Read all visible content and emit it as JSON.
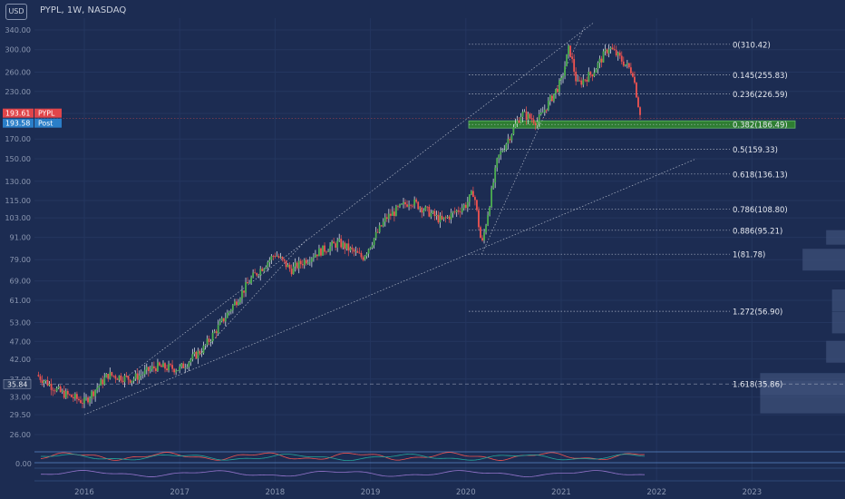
{
  "header": {
    "currency": "USD",
    "symbol": "PYPL",
    "interval": "1W",
    "exchange": "NASDAQ",
    "separator": ", "
  },
  "colors": {
    "background": "#1c2c52",
    "up": "#26a69a",
    "up_fill": "#4caf50",
    "down": "#ef5350",
    "grid": "#24365f",
    "axis_text": "#8a96b0",
    "fib_line": "#c9cfdc",
    "fib_zone": "#2e7d32",
    "price_badge": "#e0454a",
    "post_badge": "#2a7ec8",
    "volume_profile": "#3c4f78",
    "rsi": "#ef5350",
    "rsi_signal": "#26a69a",
    "stoch": "#9575cd"
  },
  "price_badges": [
    {
      "value": "193.61",
      "label": "PYPL",
      "color": "#e0454a"
    },
    {
      "value": "193.58",
      "label": "Post",
      "color": "#2a7ec8"
    }
  ],
  "crosshair_label": "35.84",
  "chart_data": {
    "type": "candlestick",
    "title": "PYPL, 1W, NASDAQ",
    "y_scale": "log",
    "y_ticks": [
      "340.00",
      "300.00",
      "260.00",
      "230.00",
      "200.00",
      "170.00",
      "150.00",
      "130.00",
      "115.00",
      "103.00",
      "91.00",
      "79.00",
      "69.00",
      "61.00",
      "53.00",
      "47.00",
      "42.00",
      "37.00",
      "33.00",
      "29.50",
      "26.00"
    ],
    "x_ticks": [
      "2016",
      "2017",
      "2018",
      "2019",
      "2020",
      "2021",
      "2022",
      "2023"
    ],
    "indicator_tick": "0.00",
    "last_price": 193.61,
    "post_price": 193.58,
    "anchor_points": [
      [
        "2015-07",
        38
      ],
      [
        "2015-10",
        34
      ],
      [
        "2016-01",
        32
      ],
      [
        "2016-04",
        38
      ],
      [
        "2016-07",
        37
      ],
      [
        "2016-10",
        40
      ],
      [
        "2017-01",
        39.5
      ],
      [
        "2017-04",
        45
      ],
      [
        "2017-07",
        56
      ],
      [
        "2017-10",
        70
      ],
      [
        "2018-01",
        82
      ],
      [
        "2018-03",
        74
      ],
      [
        "2018-06",
        82
      ],
      [
        "2018-09",
        88
      ],
      [
        "2018-12",
        80
      ],
      [
        "2019-03",
        103
      ],
      [
        "2019-06",
        115
      ],
      [
        "2019-08",
        108
      ],
      [
        "2019-10",
        101
      ],
      [
        "2020-01",
        112
      ],
      [
        "2020-02",
        122
      ],
      [
        "2020-03",
        86
      ],
      [
        "2020-05",
        150
      ],
      [
        "2020-08",
        200
      ],
      [
        "2020-10",
        190
      ],
      [
        "2021-01",
        245
      ],
      [
        "2021-02",
        305
      ],
      [
        "2021-03",
        240
      ],
      [
        "2021-05",
        260
      ],
      [
        "2021-07",
        305
      ],
      [
        "2021-08",
        290
      ],
      [
        "2021-10",
        260
      ],
      [
        "2021-11",
        193.61
      ]
    ],
    "fibonacci": {
      "levels": [
        {
          "ratio": "0",
          "value": 310.42,
          "label": "0(310.42)"
        },
        {
          "ratio": "0.145",
          "value": 255.83,
          "label": "0.145(255.83)"
        },
        {
          "ratio": "0.236",
          "value": 226.59,
          "label": "0.236(226.59)"
        },
        {
          "ratio": "0.382",
          "value": 186.49,
          "label": "0.382(186.49)"
        },
        {
          "ratio": "0.5",
          "value": 159.33,
          "label": "0.5(159.33)"
        },
        {
          "ratio": "0.618",
          "value": 136.13,
          "label": "0.618(136.13)"
        },
        {
          "ratio": "0.786",
          "value": 108.8,
          "label": "0.786(108.80)"
        },
        {
          "ratio": "0.886",
          "value": 95.21,
          "label": "0.886(95.21)"
        },
        {
          "ratio": "1",
          "value": 81.78,
          "label": "1(81.78)"
        },
        {
          "ratio": "1.272",
          "value": 56.9,
          "label": "1.272(56.90)"
        },
        {
          "ratio": "1.618",
          "value": 35.86,
          "label": "1.618(35.86)"
        }
      ],
      "highlighted_zone_ratio": "0.382"
    },
    "trendlines": [
      {
        "from": [
          "2016-01",
          29.5
        ],
        "to": [
          "2022-06",
          150
        ]
      },
      {
        "from": [
          "2016-06",
          37
        ],
        "to": [
          "2021-05",
          355
        ]
      },
      {
        "from": [
          "2017-03",
          42
        ],
        "to": [
          "2018-05",
          90
        ]
      },
      {
        "from": [
          "2020-03",
          81.78
        ],
        "to": [
          "2021-04",
          350
        ]
      }
    ],
    "volume_profile": [
      {
        "price": 91,
        "strength": 0.16
      },
      {
        "price": 79,
        "strength": 0.36
      },
      {
        "price": 61,
        "strength": 0.11
      },
      {
        "price": 53,
        "strength": 0.11
      },
      {
        "price": 44,
        "strength": 0.16
      },
      {
        "price": 35.86,
        "strength": 0.72
      },
      {
        "price": 33,
        "strength": 0.72
      }
    ],
    "indicators": [
      "RSI",
      "Stochastic"
    ]
  }
}
